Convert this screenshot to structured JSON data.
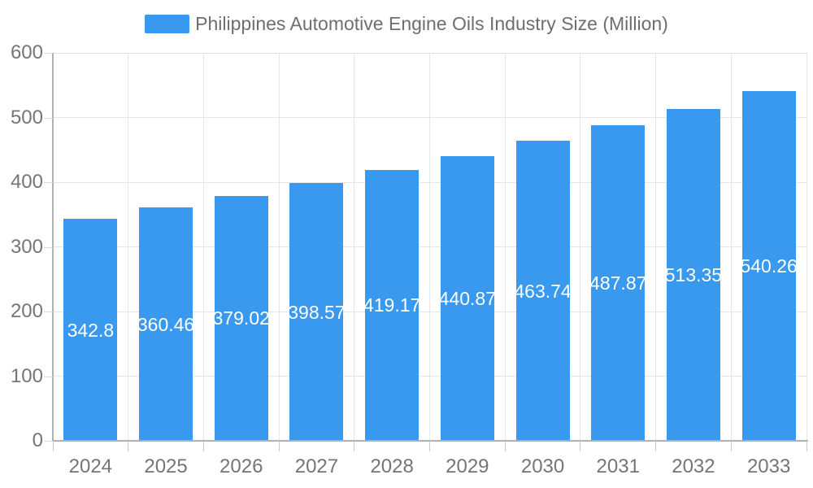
{
  "chart_data": {
    "type": "bar",
    "title": "Philippines Automotive Engine Oils Industry Size (Million)",
    "series_name": "Philippines Automotive Engine Oils Industry Size (Million)",
    "categories": [
      "2024",
      "2025",
      "2026",
      "2027",
      "2028",
      "2029",
      "2030",
      "2031",
      "2032",
      "2033"
    ],
    "values": [
      342.8,
      360.46,
      379.02,
      398.57,
      419.17,
      440.87,
      463.74,
      487.87,
      513.35,
      540.26
    ],
    "value_labels": [
      "342.8",
      "360.46",
      "379.02",
      "398.57",
      "419.17",
      "440.87",
      "463.74",
      "487.87",
      "513.35",
      "540.26"
    ],
    "xlabel": "",
    "ylabel": "",
    "ylim": [
      0,
      600
    ],
    "y_ticks": [
      0,
      100,
      200,
      300,
      400,
      500,
      600
    ],
    "y_tick_labels": [
      "0",
      "100",
      "200",
      "300",
      "400",
      "500",
      "600"
    ],
    "grid": true,
    "legend_position": "top-center",
    "bar_color": "#3999ee",
    "value_label_color": "#ffffff"
  },
  "legend": {
    "label": "Philippines Automotive Engine Oils Industry Size (Million)",
    "swatch_color": "#3999ee"
  },
  "colors": {
    "background": "#ffffff",
    "axis_line": "#b1b1b1",
    "grid_line": "#e6e6e6",
    "y_tick": "#d9d9d9",
    "x_tick": "#c9c9c9",
    "axis_text": "#757575",
    "legend_text": "#6e6e6e"
  }
}
